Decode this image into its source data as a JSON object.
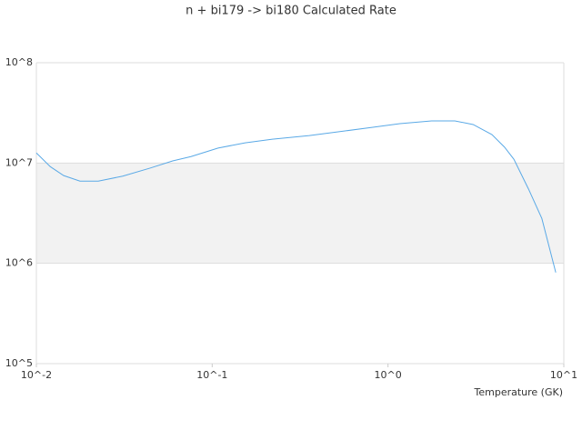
{
  "chart_data": {
    "type": "line",
    "title": "n + bi179 -> bi180 Calculated Rate",
    "x_label": "Temperature (GK)",
    "x": [
      0.01,
      0.012,
      0.0143,
      0.0177,
      0.0225,
      0.031,
      0.0443,
      0.0596,
      0.0757,
      0.108,
      0.154,
      0.22,
      0.357,
      0.57,
      0.82,
      1.17,
      1.77,
      2.4,
      3.05,
      3.9,
      4.6,
      5.2,
      6.3,
      7.5,
      9.0
    ],
    "series": [
      {
        "name": "n + bi179 -> bi180",
        "color": "#5aa9e6",
        "values": [
          12600000,
          9200000,
          7500000,
          6600000,
          6600000,
          7400000,
          8900000,
          10500000,
          11600000,
          14100000,
          15900000,
          17300000,
          18800000,
          20900000,
          22700000,
          24700000,
          26300000,
          26300000,
          24200000,
          19200000,
          14400000,
          10900000,
          5500000,
          2800000,
          810000
        ]
      }
    ],
    "xscale": "log",
    "yscale": "log",
    "xlim": [
      0.01,
      10
    ],
    "ylim": [
      100000,
      100000000
    ],
    "xticks": [
      {
        "value": 0.01,
        "label": "10^-2"
      },
      {
        "value": 0.1,
        "label": "10^-1"
      },
      {
        "value": 1,
        "label": "10^0"
      },
      {
        "value": 10,
        "label": "10^1"
      }
    ],
    "yticks": [
      {
        "value": 100000,
        "label": "10^5"
      },
      {
        "value": 1000000,
        "label": "10^6"
      },
      {
        "value": 10000000,
        "label": "10^7"
      },
      {
        "value": 100000000,
        "label": "10^8"
      }
    ],
    "grid": true,
    "band_color": "#f2f2f2"
  }
}
